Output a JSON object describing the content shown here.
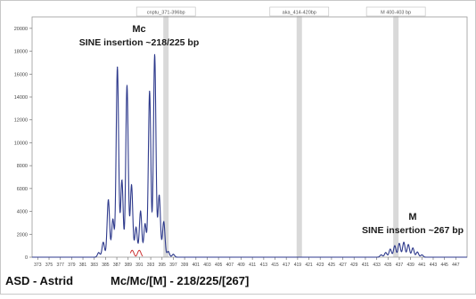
{
  "chart_data": {
    "type": "line",
    "x_range": [
      372,
      449
    ],
    "ylim": [
      0,
      21000
    ],
    "yticks": [
      0,
      2000,
      4000,
      6000,
      8000,
      10000,
      12000,
      14000,
      16000,
      18000,
      20000
    ],
    "xticks": [
      "373",
      "375",
      "377",
      "379",
      "381",
      "383",
      "385",
      "387",
      "389",
      "391",
      "393",
      "395",
      "397",
      "399",
      "401",
      "403",
      "405",
      "407",
      "409",
      "411",
      "413",
      "415",
      "417",
      "419",
      "421",
      "423",
      "425",
      "427",
      "429",
      "431",
      "433",
      "435",
      "437",
      "439",
      "441",
      "443",
      "445",
      "447"
    ],
    "xtick_values": [
      373,
      375,
      377,
      379,
      381,
      383,
      385,
      387,
      389,
      391,
      393,
      395,
      397,
      399,
      401,
      403,
      405,
      407,
      409,
      411,
      413,
      415,
      417,
      419,
      421,
      423,
      425,
      427,
      429,
      431,
      433,
      435,
      437,
      439,
      441,
      443,
      445,
      447
    ],
    "grid": false,
    "bins": [
      {
        "label": "cnptu_371-396bp",
        "x": 395.7
      },
      {
        "label": "aka_414-420bp",
        "x": 419.3
      },
      {
        "label": "M 400-403 bp",
        "x": 436.4
      }
    ],
    "series_color": "#2e3a8c",
    "baseline_color": "#cc3333",
    "peaks": [
      {
        "x": 383.8,
        "y": 400
      },
      {
        "x": 384.6,
        "y": 1300
      },
      {
        "x": 385.5,
        "y": 5000
      },
      {
        "x": 386.3,
        "y": 3300
      },
      {
        "x": 387.1,
        "y": 16600
      },
      {
        "x": 387.9,
        "y": 6700
      },
      {
        "x": 388.8,
        "y": 15000
      },
      {
        "x": 389.6,
        "y": 6300
      },
      {
        "x": 390.4,
        "y": 2600
      },
      {
        "x": 391.2,
        "y": 4000
      },
      {
        "x": 392.0,
        "y": 2900
      },
      {
        "x": 392.8,
        "y": 14500
      },
      {
        "x": 393.7,
        "y": 17700
      },
      {
        "x": 394.5,
        "y": 5400
      },
      {
        "x": 395.3,
        "y": 3100
      },
      {
        "x": 396.1,
        "y": 500
      },
      {
        "x": 397.0,
        "y": 250
      },
      {
        "x": 433.8,
        "y": 200
      },
      {
        "x": 434.6,
        "y": 400
      },
      {
        "x": 435.4,
        "y": 700
      },
      {
        "x": 436.2,
        "y": 1000
      },
      {
        "x": 437.0,
        "y": 1200
      },
      {
        "x": 437.8,
        "y": 1300
      },
      {
        "x": 438.6,
        "y": 1100
      },
      {
        "x": 439.4,
        "y": 800
      },
      {
        "x": 440.2,
        "y": 450
      },
      {
        "x": 441.0,
        "y": 200
      }
    ],
    "annotations": [
      {
        "title": "Mc",
        "subtitle": "SINE insertion ~218/225 bp"
      },
      {
        "title": "M",
        "subtitle": "SINE insertion ~267 bp"
      }
    ]
  },
  "caption": {
    "name": "ASD - Astrid",
    "genotype": "Mc/Mc/[M] - 218/225/[267]"
  }
}
